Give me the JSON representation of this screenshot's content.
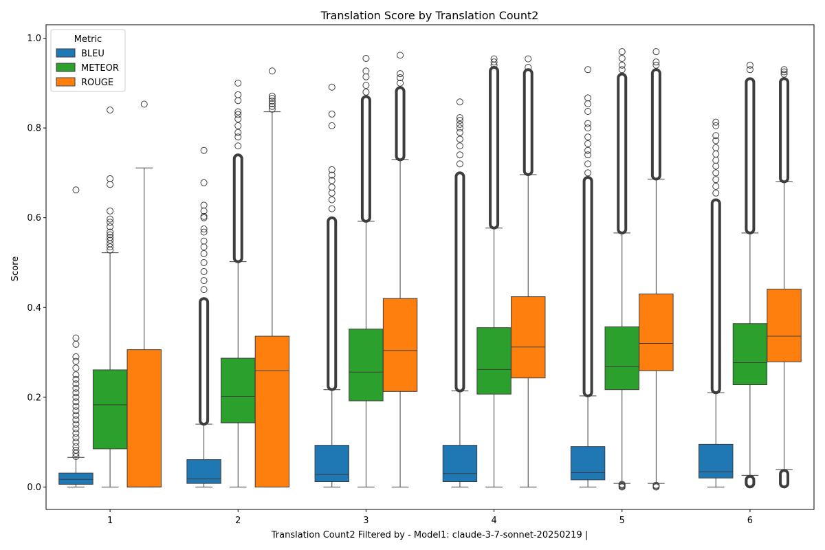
{
  "chart_data": {
    "type": "box",
    "title": "Translation Score by Translation Count2",
    "xlabel": "Translation Count2 Filtered by - Model1: claude-3-7-sonnet-20250219 |",
    "ylabel": "Score",
    "categories": [
      "1",
      "2",
      "3",
      "4",
      "5",
      "6"
    ],
    "ylim": [
      -0.05,
      1.03
    ],
    "yticks": [
      0.0,
      0.2,
      0.4,
      0.6,
      0.8,
      1.0
    ],
    "ytick_labels": [
      "0.0",
      "0.2",
      "0.4",
      "0.6",
      "0.8",
      "1.0"
    ],
    "grid": false,
    "legend": {
      "title": "Metric",
      "placement": "top-left"
    },
    "series": [
      {
        "name": "BLEU",
        "color": "#1f77b4",
        "boxes": [
          {
            "whisker_low": 0.0,
            "q1": 0.006,
            "median": 0.017,
            "q3": 0.031,
            "whisker_high": 0.066,
            "outliers_high": [
              0.068,
              0.075,
              0.082,
              0.09,
              0.1,
              0.11,
              0.12,
              0.13,
              0.14,
              0.15,
              0.16,
              0.17,
              0.18,
              0.19,
              0.2,
              0.21,
              0.22,
              0.23,
              0.24,
              0.25,
              0.265,
              0.28,
              0.29,
              0.318,
              0.332,
              0.662
            ],
            "outliers_low": []
          },
          {
            "whisker_low": 0.0,
            "q1": 0.008,
            "median": 0.018,
            "q3": 0.061,
            "whisker_high": 0.14,
            "outlier_band": [
              0.14,
              0.42
            ],
            "outliers_high": [
              0.44,
              0.46,
              0.48,
              0.5,
              0.52,
              0.535,
              0.548,
              0.568,
              0.575,
              0.6,
              0.603,
              0.615,
              0.628,
              0.678,
              0.75
            ],
            "outliers_low": []
          },
          {
            "whisker_low": 0.0,
            "q1": 0.012,
            "median": 0.028,
            "q3": 0.093,
            "whisker_high": 0.217,
            "outlier_band": [
              0.217,
              0.6
            ],
            "outliers_high": [
              0.62,
              0.64,
              0.655,
              0.668,
              0.683,
              0.695,
              0.707,
              0.805,
              0.831,
              0.891
            ],
            "outliers_low": []
          },
          {
            "whisker_low": 0.0,
            "q1": 0.012,
            "median": 0.03,
            "q3": 0.093,
            "whisker_high": 0.214,
            "outlier_band": [
              0.214,
              0.7
            ],
            "outliers_high": [
              0.72,
              0.74,
              0.76,
              0.775,
              0.79,
              0.8,
              0.808,
              0.817,
              0.823,
              0.858
            ],
            "outliers_low": []
          },
          {
            "whisker_low": 0.0,
            "q1": 0.016,
            "median": 0.032,
            "q3": 0.09,
            "whisker_high": 0.203,
            "outlier_band": [
              0.203,
              0.69
            ],
            "outliers_high": [
              0.7,
              0.72,
              0.74,
              0.75,
              0.765,
              0.78,
              0.8,
              0.81,
              0.837,
              0.854,
              0.867,
              0.93
            ],
            "outliers_low": []
          },
          {
            "whisker_low": 0.0,
            "q1": 0.02,
            "median": 0.034,
            "q3": 0.095,
            "whisker_high": 0.21,
            "outlier_band": [
              0.21,
              0.64
            ],
            "outliers_high": [
              0.655,
              0.67,
              0.685,
              0.7,
              0.715,
              0.728,
              0.742,
              0.756,
              0.772,
              0.783,
              0.805,
              0.813
            ],
            "outliers_low": []
          }
        ]
      },
      {
        "name": "METEOR",
        "color": "#2ca02c",
        "boxes": [
          {
            "whisker_low": 0.0,
            "q1": 0.085,
            "median": 0.183,
            "q3": 0.261,
            "whisker_high": 0.522,
            "outliers_high": [
              0.528,
              0.535,
              0.542,
              0.55,
              0.556,
              0.562,
              0.568,
              0.58,
              0.59,
              0.597,
              0.615,
              0.674,
              0.687,
              0.84
            ],
            "outliers_low": []
          },
          {
            "whisker_low": 0.0,
            "q1": 0.143,
            "median": 0.202,
            "q3": 0.287,
            "whisker_high": 0.502,
            "outlier_band": [
              0.502,
              0.74
            ],
            "outliers_high": [
              0.76,
              0.78,
              0.79,
              0.805,
              0.82,
              0.83,
              0.836,
              0.861,
              0.874,
              0.9
            ],
            "outliers_low": []
          },
          {
            "whisker_low": 0.0,
            "q1": 0.192,
            "median": 0.256,
            "q3": 0.352,
            "whisker_high": 0.592,
            "outlier_band": [
              0.592,
              0.87
            ],
            "outliers_high": [
              0.88,
              0.895,
              0.914,
              0.927,
              0.955
            ],
            "outliers_low": []
          },
          {
            "whisker_low": 0.0,
            "q1": 0.207,
            "median": 0.262,
            "q3": 0.355,
            "whisker_high": 0.577,
            "outlier_band": [
              0.577,
              0.935
            ],
            "outliers_high": [
              0.94,
              0.947,
              0.954
            ],
            "outliers_low": []
          },
          {
            "whisker_low": 0.008,
            "q1": 0.217,
            "median": 0.268,
            "q3": 0.357,
            "whisker_high": 0.566,
            "outlier_band": [
              0.566,
              0.92
            ],
            "outliers_high": [
              0.93,
              0.94,
              0.955,
              0.97
            ],
            "outliers_low": [
              0.006,
              0.004,
              0.002,
              0.0
            ]
          },
          {
            "whisker_low": 0.026,
            "q1": 0.228,
            "median": 0.277,
            "q3": 0.364,
            "whisker_high": 0.566,
            "outlier_band": [
              0.566,
              0.91
            ],
            "outliers_high": [
              0.93,
              0.94
            ],
            "outlier_band_low": [
              0.0,
              0.024
            ]
          }
        ]
      },
      {
        "name": "ROUGE",
        "color": "#ff7f0e",
        "boxes": [
          {
            "whisker_low": 0.0,
            "q1": 0.0,
            "median": 0.0,
            "q3": 0.306,
            "whisker_high": 0.711,
            "outliers_high": [
              0.853
            ],
            "outliers_low": []
          },
          {
            "whisker_low": 0.0,
            "q1": 0.0,
            "median": 0.259,
            "q3": 0.336,
            "whisker_high": 0.836,
            "outliers_high": [
              0.842,
              0.848,
              0.854,
              0.86,
              0.866,
              0.871,
              0.927
            ],
            "outliers_low": []
          },
          {
            "whisker_low": 0.0,
            "q1": 0.213,
            "median": 0.304,
            "q3": 0.42,
            "whisker_high": 0.729,
            "outlier_band": [
              0.729,
              0.89
            ],
            "outliers_high": [
              0.9,
              0.912,
              0.921,
              0.962
            ],
            "outliers_low": []
          },
          {
            "whisker_low": 0.0,
            "q1": 0.243,
            "median": 0.312,
            "q3": 0.424,
            "whisker_high": 0.696,
            "outlier_band": [
              0.696,
              0.93
            ],
            "outliers_high": [
              0.935,
              0.954
            ],
            "outliers_low": []
          },
          {
            "whisker_low": 0.008,
            "q1": 0.259,
            "median": 0.32,
            "q3": 0.43,
            "whisker_high": 0.686,
            "outlier_band": [
              0.686,
              0.93
            ],
            "outliers_high": [
              0.94,
              0.947,
              0.97
            ],
            "outliers_low": [
              0.004,
              0.002,
              0.0
            ]
          },
          {
            "whisker_low": 0.039,
            "q1": 0.279,
            "median": 0.336,
            "q3": 0.441,
            "whisker_high": 0.68,
            "outlier_band": [
              0.68,
              0.91
            ],
            "outliers_high": [
              0.92,
              0.925,
              0.93
            ],
            "outlier_band_low": [
              0.0,
              0.037
            ]
          }
        ]
      }
    ]
  }
}
